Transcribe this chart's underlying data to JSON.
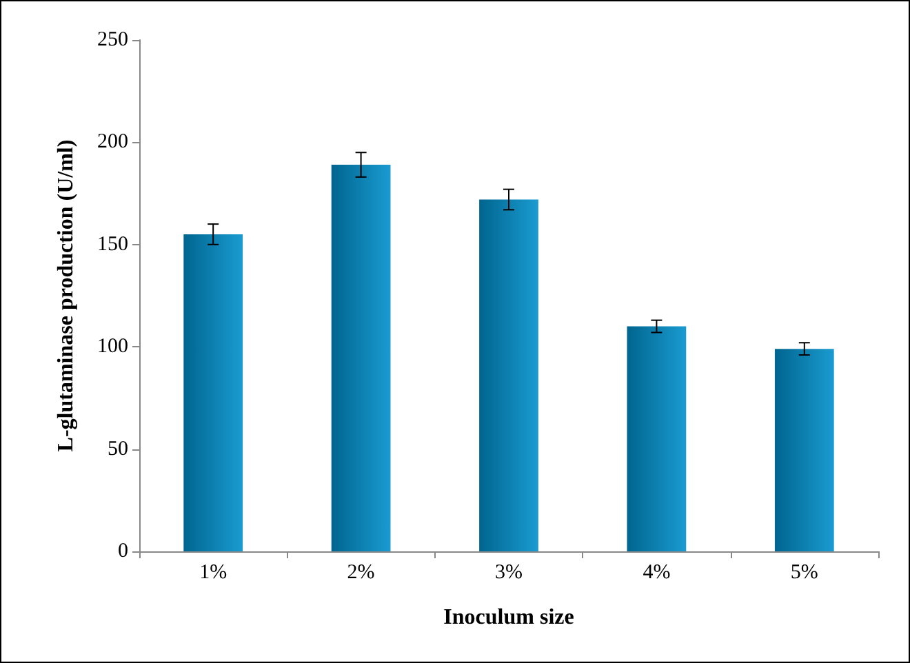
{
  "chart_data": {
    "type": "bar",
    "xlabel": "Inoculum size",
    "ylabel": "L-glutaminase production (U/ml)",
    "categories": [
      "1%",
      "2%",
      "3%",
      "4%",
      "5%"
    ],
    "values": [
      155,
      189,
      172,
      110,
      99
    ],
    "errors": [
      5,
      6,
      5,
      3,
      3
    ],
    "color": "#0090cc",
    "ylim": [
      0,
      250
    ],
    "yticks": [
      0,
      50,
      100,
      150,
      200,
      250
    ],
    "grid": false
  }
}
